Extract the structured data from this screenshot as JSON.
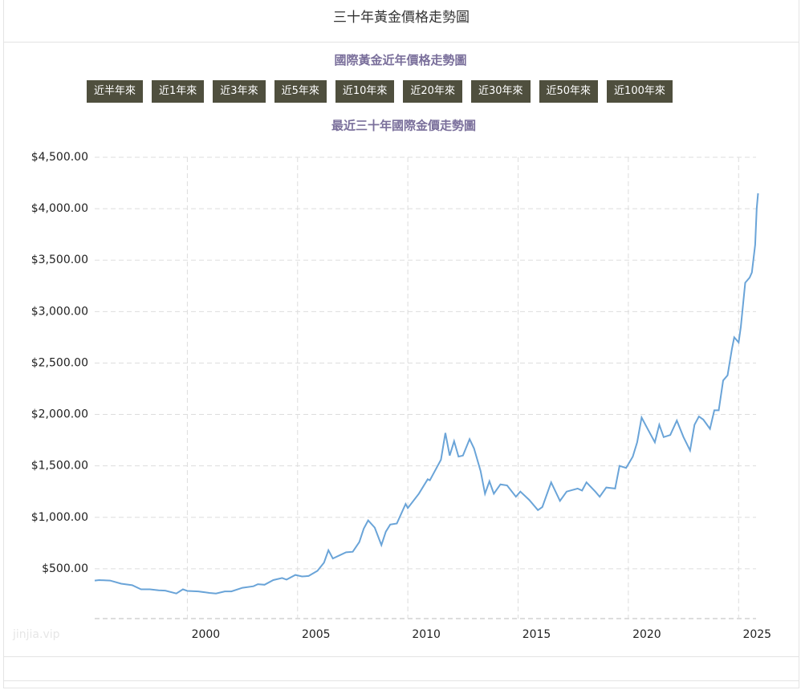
{
  "header": {
    "title": "三十年黃金價格走勢圖"
  },
  "subtitle": "國際黃金近年價格走勢圖",
  "buttons": [
    "近半年來",
    "近1年來",
    "近3年來",
    "近5年來",
    "近10年來",
    "近20年來",
    "近30年來",
    "近50年來",
    "近100年來"
  ],
  "watermark": "jinjia.vip",
  "chart_data": {
    "type": "line",
    "title": "最近三十年國際金價走勢圖",
    "color": "#6aa4d8",
    "grid": true,
    "x": [
      1995.8,
      1996.0,
      1996.5,
      1997.0,
      1997.5,
      1997.9,
      1998.3,
      1998.7,
      1999.0,
      1999.5,
      1999.8,
      2000.0,
      2000.5,
      2001.0,
      2001.3,
      2001.7,
      2002.0,
      2002.5,
      2003.0,
      2003.2,
      2003.5,
      2003.9,
      2004.3,
      2004.5,
      2004.9,
      2005.2,
      2005.5,
      2005.9,
      2006.2,
      2006.4,
      2006.6,
      2006.9,
      2007.2,
      2007.5,
      2007.8,
      2008.0,
      2008.2,
      2008.5,
      2008.8,
      2009.0,
      2009.2,
      2009.5,
      2009.9,
      2010.0,
      2010.5,
      2010.9,
      2011.0,
      2011.3,
      2011.5,
      2011.7,
      2011.9,
      2012.1,
      2012.3,
      2012.5,
      2012.8,
      2013.0,
      2013.3,
      2013.5,
      2013.7,
      2013.9,
      2014.2,
      2014.5,
      2014.9,
      2015.1,
      2015.5,
      2015.9,
      2016.1,
      2016.5,
      2016.9,
      2017.2,
      2017.7,
      2017.9,
      2018.1,
      2018.5,
      2018.7,
      2019.0,
      2019.4,
      2019.6,
      2019.9,
      2020.2,
      2020.4,
      2020.6,
      2020.9,
      2021.2,
      2021.4,
      2021.6,
      2021.9,
      2022.2,
      2022.5,
      2022.8,
      2023.0,
      2023.2,
      2023.4,
      2023.7,
      2023.9,
      2024.1,
      2024.3,
      2024.5,
      2024.7,
      2024.8,
      2025.0,
      2025.1,
      2025.3,
      2025.5,
      2025.6,
      2025.75,
      2025.82,
      2025.88
    ],
    "values": [
      385,
      390,
      385,
      355,
      340,
      300,
      300,
      290,
      288,
      260,
      300,
      285,
      280,
      265,
      260,
      280,
      280,
      315,
      330,
      350,
      345,
      390,
      410,
      395,
      440,
      425,
      430,
      480,
      560,
      680,
      600,
      630,
      660,
      665,
      760,
      890,
      970,
      900,
      730,
      860,
      930,
      940,
      1130,
      1090,
      1230,
      1370,
      1360,
      1480,
      1560,
      1820,
      1600,
      1740,
      1590,
      1600,
      1760,
      1670,
      1450,
      1230,
      1350,
      1230,
      1320,
      1310,
      1200,
      1250,
      1170,
      1070,
      1100,
      1340,
      1160,
      1250,
      1280,
      1260,
      1340,
      1250,
      1200,
      1290,
      1280,
      1500,
      1480,
      1590,
      1730,
      1970,
      1850,
      1730,
      1900,
      1780,
      1800,
      1940,
      1780,
      1650,
      1900,
      1980,
      1950,
      1860,
      2040,
      2040,
      2330,
      2380,
      2640,
      2750,
      2700,
      2850,
      3280,
      3330,
      3380,
      3650,
      4000,
      4150
    ],
    "xlim": [
      1995.8,
      2025.9
    ],
    "xticks": [
      2000,
      2005,
      2010,
      2015,
      2020,
      2025
    ],
    "ylim": [
      0,
      4500
    ],
    "yticks": [
      {
        "value": 500,
        "label": "$500.00"
      },
      {
        "value": 1000,
        "label": "$1,000.00"
      },
      {
        "value": 1500,
        "label": "$1,500.00"
      },
      {
        "value": 2000,
        "label": "$2,000.00"
      },
      {
        "value": 2500,
        "label": "$2,500.00"
      },
      {
        "value": 3000,
        "label": "$3,000.00"
      },
      {
        "value": 3500,
        "label": "$3,500.00"
      },
      {
        "value": 4000,
        "label": "$4,000.00"
      },
      {
        "value": 4500,
        "label": "$4,500.00"
      }
    ]
  }
}
